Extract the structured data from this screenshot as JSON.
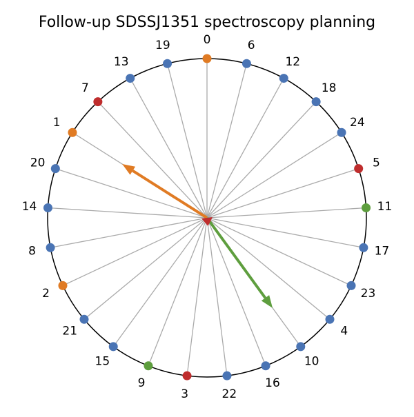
{
  "chart_data": {
    "type": "circular-phasor",
    "title": "Follow-up SDSSJ1351 spectroscopy planning",
    "n_positions": 25,
    "label_order_clockwise_from_top": [
      "0",
      "6",
      "12",
      "18",
      "24",
      "5",
      "11",
      "17",
      "23",
      "4",
      "10",
      "16",
      "22",
      "3",
      "9",
      "15",
      "21",
      "2",
      "8",
      "14",
      "20",
      "1",
      "7",
      "13",
      "19"
    ],
    "classes": {
      "0": "orange",
      "1": "orange",
      "2": "orange",
      "3": "red",
      "5": "red",
      "7": "red",
      "9": "green",
      "11": "green"
    },
    "default_class": "blue",
    "colors": {
      "blue": "#4a74b4",
      "orange": "#e07b24",
      "green": "#5e9e3e",
      "red": "#bf2d2d",
      "spoke": "#aaaaaa",
      "circle": "#000000"
    },
    "arrows": [
      {
        "name": "orange-arrow",
        "class": "orange",
        "target_label": "1",
        "length_fraction": 0.63
      },
      {
        "name": "green-arrow",
        "class": "green",
        "target_label": "10",
        "length_fraction": 0.7
      },
      {
        "name": "red-arrow",
        "class": "red",
        "target_label": "22",
        "length_fraction": 0.04
      }
    ]
  }
}
